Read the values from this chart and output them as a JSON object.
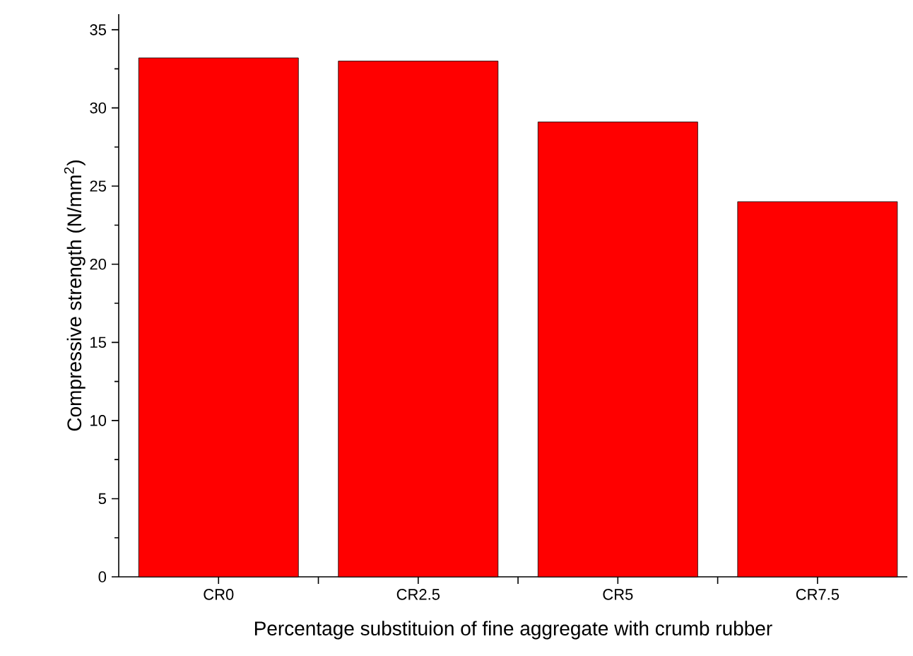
{
  "chart_data": {
    "type": "bar",
    "xlabel": "Percentage substituion of fine aggregate with crumb rubber",
    "ylabel": "Compressive strength (N/mm$^{2}$)",
    "categories": [
      "CR0",
      "CR2.5",
      "CR5",
      "CR7.5"
    ],
    "values": [
      33.2,
      33.0,
      29.1,
      24.0
    ],
    "color": "#ff0000",
    "ylim": [
      0,
      36
    ],
    "yticks": [
      0,
      5,
      10,
      15,
      20,
      25,
      30,
      35
    ],
    "grid": false
  }
}
